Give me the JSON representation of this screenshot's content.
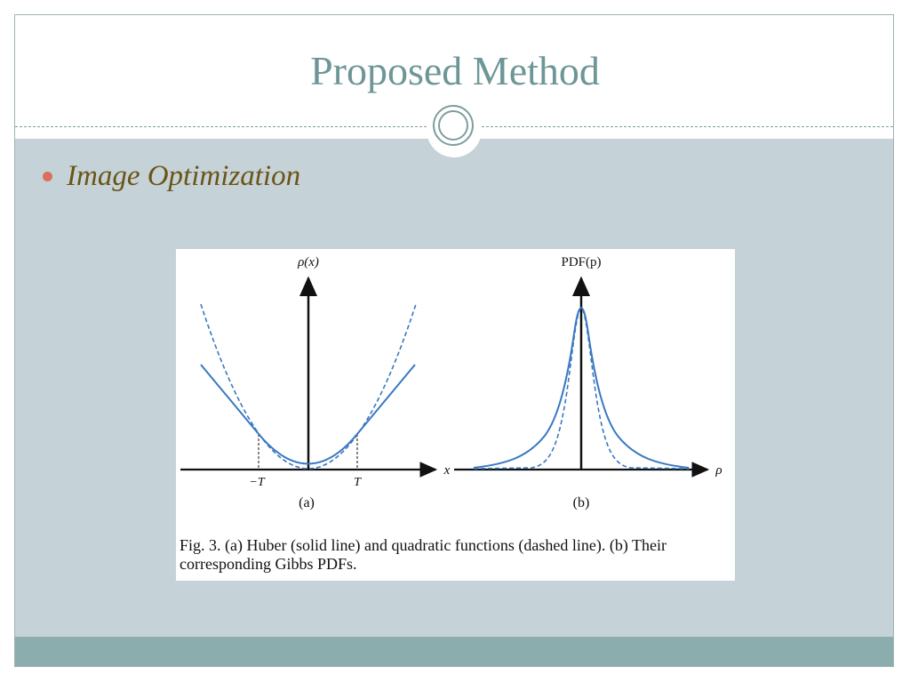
{
  "slide": {
    "title": "Proposed Method",
    "bullet": "Image Optimization"
  },
  "figure": {
    "caption": "Fig. 3.   (a) Huber (solid line) and quadratic functions (dashed line). (b) Their corresponding Gibbs PDFs.",
    "panel_a": {
      "ylabel": "ρ(x)",
      "xlabel": "x",
      "tick_neg": "−T",
      "tick_pos": "T",
      "sublabel": "(a)"
    },
    "panel_b": {
      "ylabel": "PDF(p)",
      "xlabel": "ρ",
      "sublabel": "(b)"
    }
  },
  "colors": {
    "title": "#6e9696",
    "bullet_text": "#6b5418",
    "bullet_dot": "#d9705a",
    "content_bg": "#c5d2d8",
    "footer": "#8badad",
    "curve": "#3a78c0"
  }
}
